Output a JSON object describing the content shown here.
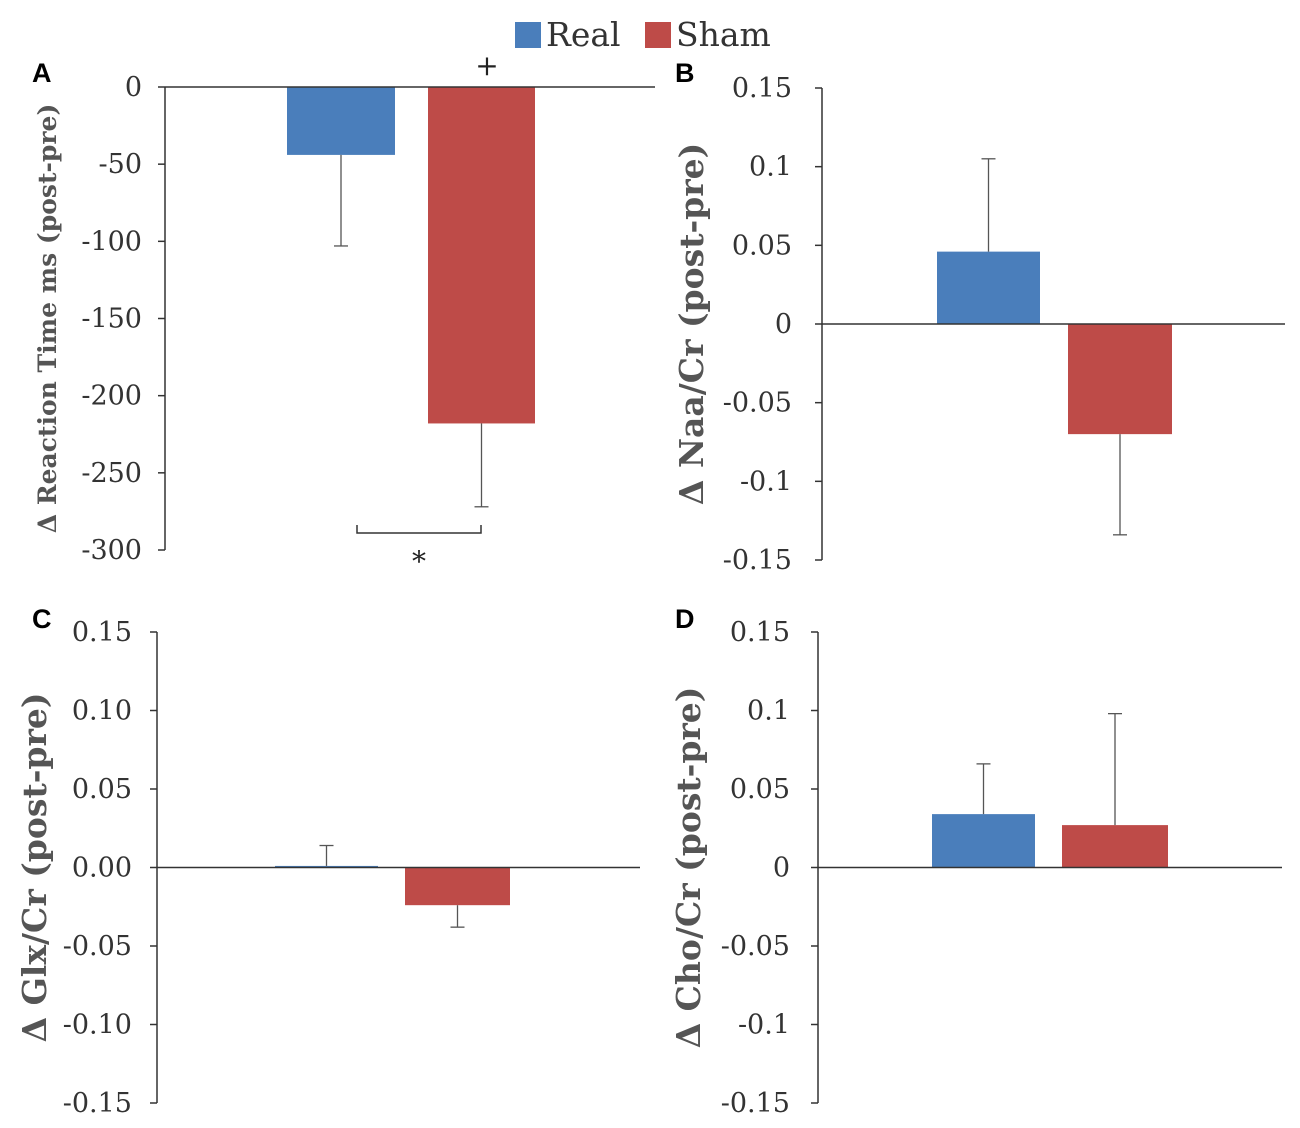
{
  "legend": {
    "entries": [
      {
        "label": "Real",
        "color": "#4A7EBB"
      },
      {
        "label": "Sham",
        "color": "#BE4B48"
      }
    ]
  },
  "chart_data": [
    {
      "panel": "A",
      "type": "bar",
      "categories": [
        "Real",
        "Sham"
      ],
      "series": [
        {
          "name": "Δ Reaction Time",
          "values": [
            -44,
            -218
          ],
          "errors": [
            59,
            54
          ]
        }
      ],
      "ylabel": "Δ Reaction Time ms (post-pre)",
      "ylim": [
        -300,
        0
      ],
      "yticks": [
        0,
        -50,
        -100,
        -150,
        -200,
        -250,
        -300
      ],
      "tick_labels": [
        "0",
        "-50",
        "-100",
        "-150",
        "-200",
        "-250",
        "-300"
      ],
      "annotations": {
        "plus": "+",
        "star": "*"
      }
    },
    {
      "panel": "B",
      "type": "bar",
      "categories": [
        "Real",
        "Sham"
      ],
      "series": [
        {
          "name": "Δ Naa/Cr",
          "values": [
            0.046,
            -0.07
          ],
          "errors": [
            0.059,
            0.064
          ]
        }
      ],
      "ylabel": "Δ Naa/Cr (post-pre)",
      "ylim": [
        -0.15,
        0.15
      ],
      "yticks": [
        0.15,
        0.1,
        0.05,
        0,
        -0.05,
        -0.1,
        -0.15
      ],
      "tick_labels": [
        "0.15",
        "0.1",
        "0.05",
        "0",
        "-0.05",
        "-0.1",
        "-0.15"
      ]
    },
    {
      "panel": "C",
      "type": "bar",
      "categories": [
        "Real",
        "Sham"
      ],
      "series": [
        {
          "name": "Δ Glx/Cr",
          "values": [
            0.001,
            -0.024
          ],
          "errors": [
            0.013,
            0.014
          ]
        }
      ],
      "ylabel": "Δ Glx/Cr (post-pre)",
      "ylim": [
        -0.15,
        0.15
      ],
      "yticks": [
        0.15,
        0.1,
        0.05,
        0,
        -0.05,
        -0.1,
        -0.15
      ],
      "tick_labels": [
        "0.15",
        "0.10",
        "0.05",
        "0.00",
        "-0.05",
        "-0.10",
        "-0.15"
      ]
    },
    {
      "panel": "D",
      "type": "bar",
      "categories": [
        "Real",
        "Sham"
      ],
      "series": [
        {
          "name": "Δ Cho/Cr",
          "values": [
            0.034,
            0.027
          ],
          "errors": [
            0.032,
            0.071
          ]
        }
      ],
      "ylabel": "Δ Cho/Cr (post-pre)",
      "ylim": [
        -0.15,
        0.15
      ],
      "yticks": [
        0.15,
        0.1,
        0.05,
        0,
        -0.05,
        -0.1,
        -0.15
      ],
      "tick_labels": [
        "0.15",
        "0.1",
        "0.05",
        "0",
        "-0.05",
        "-0.1",
        "-0.15"
      ]
    }
  ]
}
